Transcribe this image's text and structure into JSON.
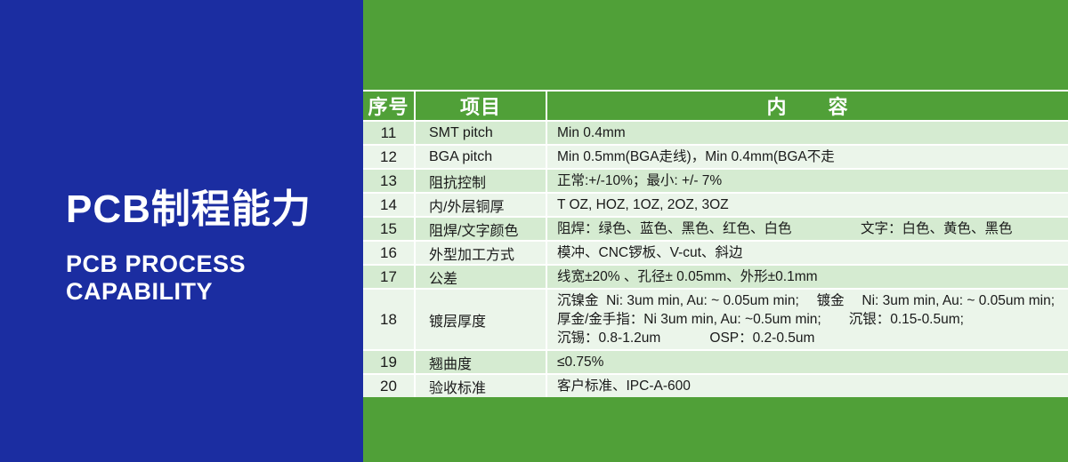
{
  "left_panel": {
    "title": "PCB制程能力",
    "subtitle_line1": "PCB PROCESS",
    "subtitle_line2": "CAPABILITY"
  },
  "table": {
    "headers": {
      "no": "序号",
      "item": "项目",
      "content": "内　　容"
    },
    "rows": [
      {
        "no": "11",
        "item": "SMT pitch",
        "content": [
          "Min 0.4mm"
        ]
      },
      {
        "no": "12",
        "item": "BGA pitch",
        "content": [
          "Min 0.5mm(BGA走线)，Min 0.4mm(BGA不走"
        ]
      },
      {
        "no": "13",
        "item": "阻抗控制",
        "content": [
          "正常:+/-10%；最小: +/- 7%"
        ]
      },
      {
        "no": "14",
        "item": "内/外层铜厚",
        "content": [
          "T OZ, HOZ, 1OZ, 2OZ, 3OZ"
        ]
      },
      {
        "no": "15",
        "item": "阻焊/文字颜色",
        "content": [
          "阻焊：绿色、蓝色、黑色、红色、白色　　　　　文字：白色、黄色、黑色"
        ]
      },
      {
        "no": "16",
        "item": "外型加工方式",
        "content": [
          "模冲、CNC锣板、V-cut、斜边"
        ]
      },
      {
        "no": "17",
        "item": "公差",
        "content": [
          "线宽±20% 、孔径± 0.05mm、外形±0.1mm"
        ]
      },
      {
        "no": "18",
        "item": "镀层厚度",
        "content": [
          "沉镍金  Ni: 3um min, Au: ~ 0.05um min;　 镀金　 Ni: 3um min, Au: ~ 0.05um min;",
          "厚金/金手指：Ni 3um min, Au: ~0.5um min;　　沉银：0.15-0.5um;",
          "沉锡：0.8-1.2um　　　  OSP：0.2-0.5um"
        ]
      },
      {
        "no": "19",
        "item": "翘曲度",
        "content": [
          "≤0.75%"
        ]
      },
      {
        "no": "20",
        "item": "验收标准",
        "content": [
          "客户标准、IPC-A-600"
        ]
      }
    ]
  },
  "colors": {
    "blue_panel": "#1b2da1",
    "green_panel": "#50A038",
    "row_odd": "#D5EBD1",
    "row_even": "#EBF5EA",
    "grid_line": "#FFFFFF",
    "text_dark": "#1a1a1a",
    "header_text": "#FFFFFF"
  }
}
